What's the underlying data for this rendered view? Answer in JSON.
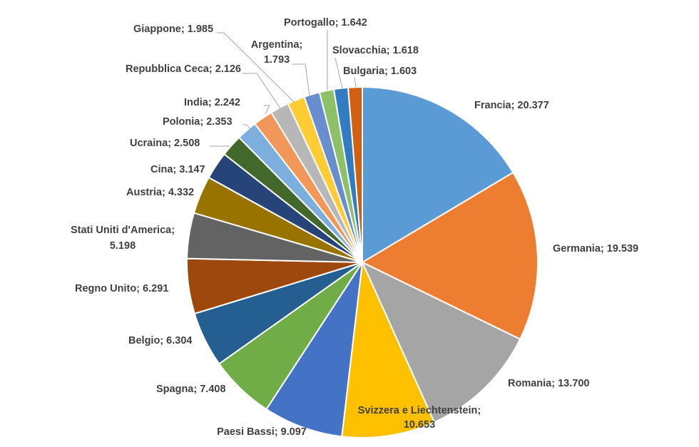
{
  "chart_data": {
    "type": "pie",
    "title": "",
    "slices": [
      {
        "label": "Francia",
        "value": 20377,
        "display": "Francia; 20.377",
        "color": "#5B9BD5"
      },
      {
        "label": "Germania",
        "value": 19539,
        "display": "Germania; 19.539",
        "color": "#ED7D31"
      },
      {
        "label": "Romania",
        "value": 13700,
        "display": "Romania; 13.700",
        "color": "#A5A5A5"
      },
      {
        "label": "Svizzera e Liechtenstein",
        "value": 10653,
        "display": "Svizzera e Liechtenstein; 10.653",
        "color": "#FFC000"
      },
      {
        "label": "Paesi Bassi",
        "value": 9097,
        "display": "Paesi Bassi; 9.097",
        "color": "#4472C4"
      },
      {
        "label": "Spagna",
        "value": 7408,
        "display": "Spagna; 7.408",
        "color": "#70AD47"
      },
      {
        "label": "Belgio",
        "value": 6304,
        "display": "Belgio; 6.304",
        "color": "#255E91"
      },
      {
        "label": "Regno Unito",
        "value": 6291,
        "display": "Regno Unito; 6.291",
        "color": "#9E480E"
      },
      {
        "label": "Stati Uniti d'America",
        "value": 5198,
        "display": "Stati Uniti d'America; 5.198",
        "color": "#636363"
      },
      {
        "label": "Austria",
        "value": 4332,
        "display": "Austria; 4.332",
        "color": "#997300"
      },
      {
        "label": "Cina",
        "value": 3147,
        "display": "Cina; 3.147",
        "color": "#264478"
      },
      {
        "label": "Ucraina",
        "value": 2508,
        "display": "Ucraina; 2.508",
        "color": "#43682B"
      },
      {
        "label": "Polonia",
        "value": 2353,
        "display": "Polonia; 2.353",
        "color": "#7CAFDD"
      },
      {
        "label": "India",
        "value": 2242,
        "display": "India; 2.242",
        "color": "#F1975A"
      },
      {
        "label": "Repubblica Ceca",
        "value": 2126,
        "display": "Repubblica Ceca; 2.126",
        "color": "#B7B7B7"
      },
      {
        "label": "Giappone",
        "value": 1985,
        "display": "Giappone; 1.985",
        "color": "#FFCD33"
      },
      {
        "label": "Argentina",
        "value": 1793,
        "display": "Argentina; 1.793",
        "color": "#698ED0"
      },
      {
        "label": "Portogallo",
        "value": 1642,
        "display": "Portogallo; 1.642",
        "color": "#8CC168"
      },
      {
        "label": "Slovacchia",
        "value": 1618,
        "display": "Slovacchia; 1.618",
        "color": "#327DC2"
      },
      {
        "label": "Bulgaria",
        "value": 1603,
        "display": "Bulgaria; 1.603",
        "color": "#D26012"
      }
    ],
    "legend": "none"
  }
}
